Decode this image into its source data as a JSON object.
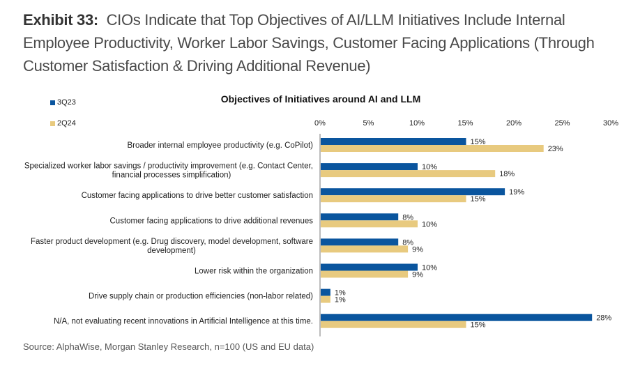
{
  "exhibit": {
    "lead": "Exhibit 33:",
    "title": "CIOs Indicate that Top Objectives of AI/LLM Initiatives Include Internal Employee Productivity, Worker Labor Savings, Customer Facing Applications (Through Customer Satisfaction & Driving Additional Revenue)"
  },
  "source": "Source: AlphaWise, Morgan Stanley Research, n=100 (US and EU data)",
  "colors": {
    "3Q23": "#0a559e",
    "2Q24": "#e8ca7f",
    "axis": "#777777"
  },
  "chart_data": {
    "type": "bar",
    "orientation": "horizontal",
    "title": "Objectives of Initiatives around AI and LLM",
    "xlabel": "",
    "ylabel": "",
    "xlim": [
      0,
      30
    ],
    "x_ticks": [
      "0%",
      "5%",
      "10%",
      "15%",
      "20%",
      "25%",
      "30%"
    ],
    "x_axis_position": "top",
    "grid": false,
    "legend": {
      "placement": "top-left",
      "entries": [
        "3Q23",
        "2Q24"
      ]
    },
    "categories": [
      "Broader internal employee productivity (e.g. CoPilot)",
      "Specialized worker labor savings / productivity improvement (e.g. Contact Center, financial processes simplification)",
      "Customer facing applications to drive better customer satisfaction",
      "Customer facing applications to drive additional revenues",
      "Faster product development (e.g. Drug discovery, model development, software development)",
      "Lower risk within the organization",
      "Drive supply chain or production efficiencies (non-labor related)",
      "N/A, not evaluating recent innovations in Artificial Intelligence at this time."
    ],
    "category_lines": [
      [
        "Broader internal employee productivity (e.g. CoPilot)"
      ],
      [
        "Specialized worker labor savings / productivity improvement (e.g. Contact Center,",
        "financial processes simplification)"
      ],
      [
        "Customer facing applications to drive better customer satisfaction"
      ],
      [
        "Customer facing applications to drive additional revenues"
      ],
      [
        "Faster product development (e.g. Drug discovery, model development, software",
        "development)"
      ],
      [
        "Lower risk within the organization"
      ],
      [
        "Drive supply chain or production efficiencies (non-labor related)"
      ],
      [
        "N/A, not evaluating recent innovations in Artificial Intelligence at this time."
      ]
    ],
    "series": [
      {
        "name": "3Q23",
        "values": [
          15,
          10,
          19,
          8,
          8,
          10,
          1,
          28
        ],
        "labels": [
          "15%",
          "10%",
          "19%",
          "8%",
          "8%",
          "10%",
          "1%",
          "28%"
        ]
      },
      {
        "name": "2Q24",
        "values": [
          23,
          18,
          15,
          10,
          9,
          9,
          1,
          15
        ],
        "labels": [
          "23%",
          "18%",
          "15%",
          "10%",
          "9%",
          "9%",
          "1%",
          "15%"
        ]
      }
    ]
  }
}
